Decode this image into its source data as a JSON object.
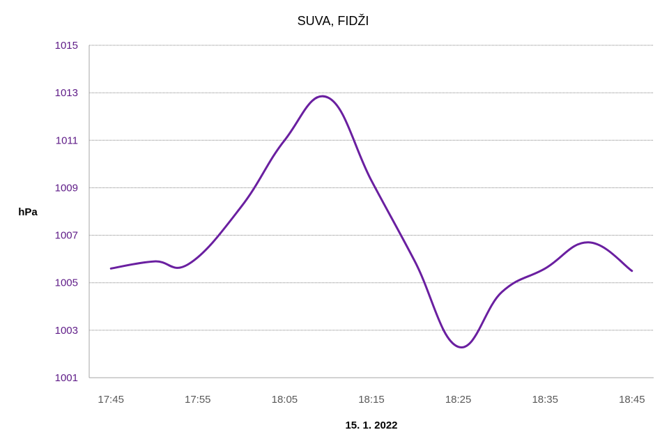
{
  "chart_data": {
    "type": "line",
    "title": "SUVA, FIDŽI",
    "xlabel": "15. 1. 2022",
    "ylabel": "hPa",
    "x_ticks": [
      "17:45",
      "17:55",
      "18:05",
      "18:15",
      "18:25",
      "18:35",
      "18:45"
    ],
    "y_ticks": [
      "1001",
      "1003",
      "1005",
      "1007",
      "1009",
      "1011",
      "1013",
      "1015"
    ],
    "ylim": [
      1001,
      1015
    ],
    "xlim": [
      "17:42.5",
      "18:47.5"
    ],
    "grid": "horizontal dotted",
    "legend": "none",
    "series": [
      {
        "x": [
          "17:45",
          "17:50",
          "17:54",
          "18:00",
          "18:05",
          "18:10",
          "18:15",
          "18:20",
          "18:25",
          "18:30",
          "18:35",
          "18:40",
          "18:45"
        ],
        "values": [
          1005.6,
          1005.9,
          1005.8,
          1008.2,
          1011.0,
          1012.8,
          1009.3,
          1005.9,
          1002.3,
          1004.6,
          1005.6,
          1006.7,
          1005.5
        ]
      }
    ],
    "colors": {
      "line": "#6A1FA0",
      "y_tick_text": "#5E1B87",
      "x_tick_text": "#595959",
      "ylabel": "#6A1FA0",
      "xlabel": "#595959",
      "grid": "#7f7f7f",
      "axis": "#a6a6a6"
    }
  }
}
